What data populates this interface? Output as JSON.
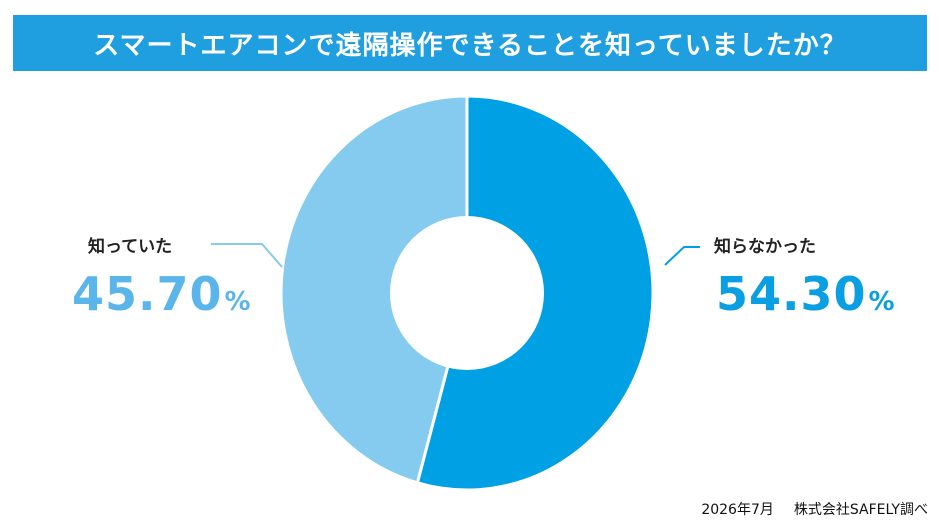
{
  "header": {
    "title": "スマートエアコンで遠隔操作できることを知っていましたか？"
  },
  "chart_data": {
    "type": "pie",
    "slices": [
      {
        "label": "知らなかった",
        "value": 54.3,
        "display": "54.30",
        "unit": "%",
        "color": "#00a0e4"
      },
      {
        "label": "知っていた",
        "value": 45.7,
        "display": "45.70",
        "unit": "%",
        "color": "#85cbf0"
      }
    ]
  },
  "footer": {
    "date": "2026年7月",
    "source": "株式会社SAFELY調べ"
  }
}
